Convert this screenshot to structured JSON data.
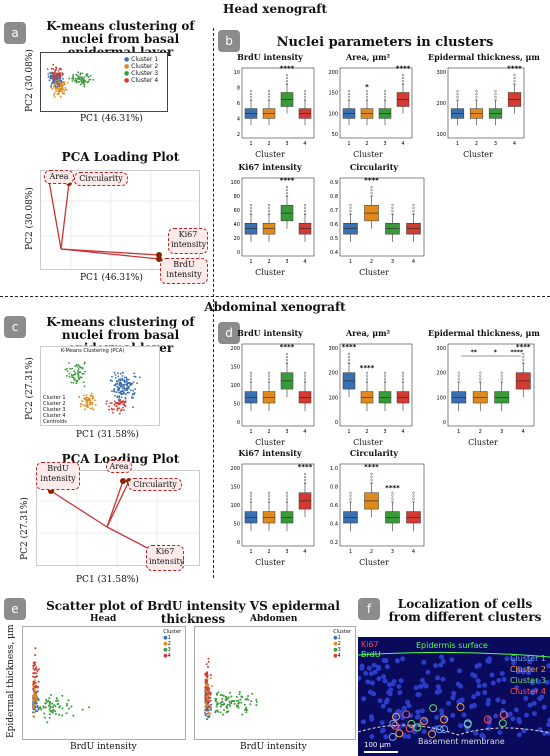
{
  "sections": {
    "head": "Head xenograft",
    "abdominal": "Abdominal xenograft"
  },
  "panels": {
    "a": "a",
    "b": "b",
    "c": "c",
    "d": "d",
    "e": "e",
    "f": "f"
  },
  "panel_a": {
    "title": "K-means clustering of nuclei from basal epidermal layer",
    "xlabel": "PC1 (46.31%)",
    "ylabel": "PC2 (30.08%)",
    "legend": [
      "Cluster 1",
      "Cluster 2",
      "Cluster 3",
      "Cluster 4"
    ],
    "loading_title": "PCA Loading Plot",
    "loading_xlabel": "PC1 (46.31%)",
    "loading_ylabel": "PC2 (30.08%)",
    "loading_labels": [
      "Area",
      "Circularity",
      "Ki67 intensity",
      "BrdU intensity"
    ]
  },
  "panel_b": {
    "title": "Nuclei parameters in clusters",
    "xlabel": "Cluster",
    "plots": [
      {
        "name": "BrdU intensity",
        "ticks": [
          "10",
          "8",
          "6",
          "4",
          "2"
        ],
        "sig": "****",
        "sig_cluster": 3
      },
      {
        "name": "Area, μm²",
        "ticks": [
          "200",
          "150",
          "100",
          "50"
        ],
        "sig": "****",
        "sig_cluster": 4,
        "sig2": "*",
        "sig2_cluster": 2
      },
      {
        "name": "Epidermal thickness, μm",
        "ticks": [
          "300",
          "200",
          "100"
        ],
        "sig": "****",
        "sig_cluster": 4
      },
      {
        "name": "Ki67 intensity",
        "ticks": [
          "100",
          "80",
          "60",
          "40",
          "20",
          "0"
        ],
        "sig": "****",
        "sig_cluster": 3
      },
      {
        "name": "Circularity",
        "ticks": [
          "0.9",
          "0.8",
          "0.7",
          "0.6",
          "0.5",
          "0.4"
        ],
        "sig": "****",
        "sig_cluster": 2
      }
    ]
  },
  "panel_c": {
    "title": "K-means clustering of nuclei from basal epidermal layer",
    "inner_title": "K-Means Clustering (PCA)",
    "xlabel": "PC1 (31.58%)",
    "ylabel": "PC2 (27.31%)",
    "legend": [
      "Cluster 1",
      "Cluster 2",
      "Cluster 3",
      "Cluster 4",
      "Centroids"
    ],
    "loading_title": "PCA Loading Plot",
    "loading_xlabel": "PC1 (31.58%)",
    "loading_ylabel": "PC2 (27.31%)",
    "loading_labels": [
      "BrdU intensity",
      "Area",
      "Circularity",
      "Ki67 intensity"
    ]
  },
  "panel_d": {
    "xlabel": "Cluster",
    "plots": [
      {
        "name": "BrdU intensity",
        "ticks": [
          "200",
          "150",
          "100",
          "50",
          "0"
        ],
        "sig": "****",
        "sig_cluster": 3
      },
      {
        "name": "Area, μm²",
        "ticks": [
          "300",
          "200",
          "100",
          "0"
        ],
        "sig": "****",
        "sig_cluster": 1,
        "sig2": "****",
        "sig2_cluster": 2
      },
      {
        "name": "Epidermal thickness, μm",
        "ticks": [
          "300",
          "200",
          "100",
          "0"
        ],
        "sig": "****",
        "sig_cluster": 4,
        "brackets": [
          "**",
          "*",
          "****"
        ]
      },
      {
        "name": "Ki67 intensity",
        "ticks": [
          "200",
          "150",
          "100",
          "50",
          "0"
        ],
        "sig": "****",
        "sig_cluster": 4
      },
      {
        "name": "Circularity",
        "ticks": [
          "1.0",
          "0.8",
          "0.6",
          "0.4",
          "0.2"
        ],
        "sig": "****",
        "sig_cluster": 2,
        "sig2": "****",
        "sig2_cluster": 3
      }
    ]
  },
  "panel_e": {
    "title": "Scatter plot of BrdU intensity VS epidermal thickness",
    "head": "Head",
    "abdomen": "Abdomen",
    "xlabel": "BrdU intensity",
    "ylabel": "Epidermal thickness, μm",
    "head_yticks": [
      "350",
      "300",
      "250",
      "200",
      "150",
      "100",
      "50"
    ],
    "head_xticks": [
      "0",
      "5",
      "10",
      "15",
      "20",
      "25",
      "30"
    ],
    "abd_xticks": [
      "0",
      "25",
      "50",
      "75",
      "100",
      "125",
      "150",
      "175"
    ],
    "legend_title": "Cluster",
    "legend": [
      "1",
      "2",
      "3",
      "4"
    ]
  },
  "panel_f": {
    "title": "Localization of cells from different clusters",
    "ki67": "Ki67",
    "brdu": "BrdU",
    "surface": "Epidermis surface",
    "basement": "Basement membrane",
    "scale": "100 μm",
    "clusters": [
      "Cluster 1",
      "Cluster 2",
      "Cluster 3",
      "Cluster 4"
    ]
  },
  "colors": {
    "c1": "#3a6fb0",
    "c2": "#e08a1e",
    "c3": "#3a9a3a",
    "c4": "#d23a32",
    "label_bg": "#8c8c8c"
  }
}
